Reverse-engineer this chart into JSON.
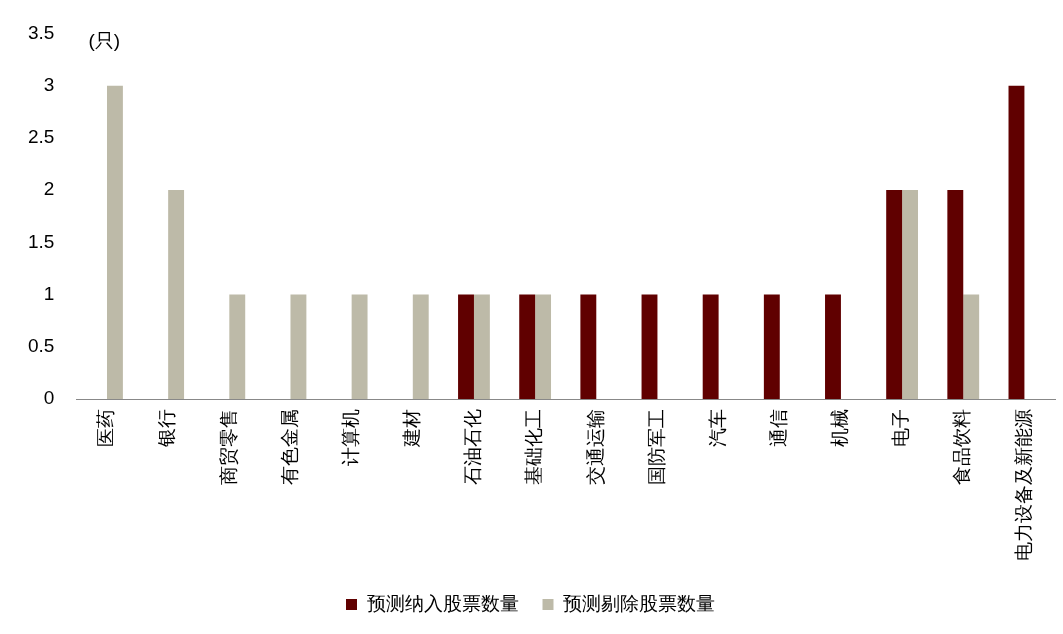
{
  "chart_data": {
    "type": "bar",
    "ylabel": "(只)",
    "categories": [
      "医药",
      "银行",
      "商贸零售",
      "有色金属",
      "计算机",
      "建材",
      "石油石化",
      "基础化工",
      "交通运输",
      "国防军工",
      "汽车",
      "通信",
      "机械",
      "电子",
      "食品饮料",
      "电力设备及新能源"
    ],
    "series": [
      {
        "name": "预测纳入股票数量",
        "color": "#600000",
        "values": [
          0,
          0,
          0,
          0,
          0,
          0,
          1,
          1,
          1,
          1,
          1,
          1,
          1,
          2,
          2,
          3
        ]
      },
      {
        "name": "预测剔除股票数量",
        "color": "#bdbaa8",
        "values": [
          3,
          2,
          1,
          1,
          1,
          1,
          1,
          1,
          0,
          0,
          0,
          0,
          0,
          2,
          1,
          0
        ]
      }
    ],
    "ylim": [
      0,
      3.5
    ],
    "yticks": [
      0,
      0.5,
      1,
      1.5,
      2,
      2.5,
      3,
      3.5
    ],
    "grid": false,
    "legend": "bottom"
  }
}
